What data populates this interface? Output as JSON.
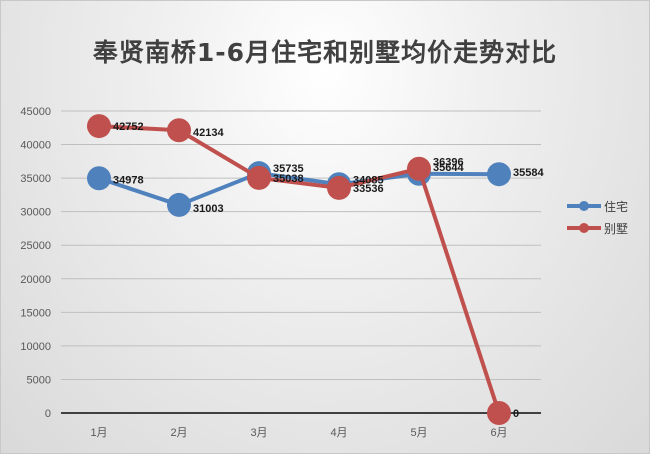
{
  "chart_data": {
    "type": "line",
    "title": "奉贤南桥1-6月住宅和别墅均价走势对比",
    "categories": [
      "1月",
      "2月",
      "3月",
      "4月",
      "5月",
      "6月"
    ],
    "series": [
      {
        "name": "住宅",
        "color": "#4f81bd",
        "values": [
          34978,
          31003,
          35735,
          34085,
          35644,
          35584
        ]
      },
      {
        "name": "别墅",
        "color": "#c0504d",
        "values": [
          42752,
          42134,
          35038,
          33536,
          36396,
          0
        ]
      }
    ],
    "xlabel": "",
    "ylabel": "",
    "ylim": [
      0,
      45000
    ],
    "yticks": [
      0,
      5000,
      10000,
      15000,
      20000,
      25000,
      30000,
      35000,
      40000,
      45000
    ],
    "grid": true,
    "data_labels": true,
    "legend_position": "right"
  },
  "title": "奉贤南桥1-6月住宅和别墅均价走势对比",
  "legend": [
    {
      "label": "住宅",
      "color": "#4f81bd"
    },
    {
      "label": "别墅",
      "color": "#c0504d"
    }
  ]
}
